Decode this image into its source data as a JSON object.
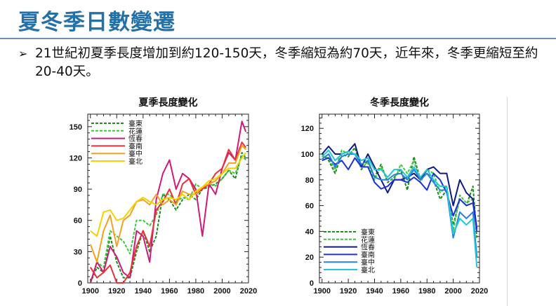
{
  "slide": {
    "title": "夏冬季日數變遷",
    "bullet_marker": "➢",
    "bullet_text": "21世紀初夏季長度增加到約120-150天，冬季縮短為約70天，近年來，冬季更縮短至約20-40天。"
  },
  "chart_data": [
    {
      "type": "line",
      "title": "夏季長度變化",
      "xlabel": "",
      "ylabel": "",
      "xlim": [
        1898,
        2020
      ],
      "ylim": [
        0,
        162
      ],
      "xticks": [
        1900,
        1920,
        1940,
        1960,
        1980,
        2000,
        2020
      ],
      "yticks": [
        0,
        30,
        60,
        90,
        120,
        150
      ],
      "legend_position": "top-left",
      "grid": false,
      "x": [
        1900,
        1905,
        1910,
        1915,
        1920,
        1925,
        1930,
        1935,
        1940,
        1945,
        1950,
        1955,
        1960,
        1965,
        1970,
        1975,
        1980,
        1985,
        1990,
        1995,
        2000,
        2005,
        2010,
        2015,
        2018
      ],
      "series": [
        {
          "name": "臺東",
          "color": "#1e8c1e",
          "dashed": true,
          "values": [
            0,
            15,
            10,
            45,
            20,
            5,
            5,
            30,
            50,
            30,
            45,
            85,
            80,
            70,
            80,
            85,
            80,
            90,
            92,
            95,
            100,
            108,
            100,
            125,
            120
          ]
        },
        {
          "name": "花蓮",
          "color": "#3cc83c",
          "dashed": true,
          "values": [
            0,
            20,
            15,
            50,
            45,
            40,
            28,
            60,
            60,
            55,
            65,
            85,
            85,
            78,
            82,
            80,
            95,
            90,
            95,
            93,
            100,
            108,
            105,
            122,
            118
          ]
        },
        {
          "name": "恆春",
          "color": "#d0197a",
          "dashed": false,
          "values": [
            0,
            20,
            10,
            35,
            25,
            10,
            5,
            50,
            45,
            20,
            80,
            105,
            118,
            90,
            105,
            100,
            90,
            45,
            95,
            85,
            110,
            125,
            118,
            155,
            145
          ]
        },
        {
          "name": "臺南",
          "color": "#e8303a",
          "dashed": false,
          "values": [
            15,
            5,
            10,
            17,
            0,
            0,
            10,
            35,
            50,
            35,
            70,
            78,
            90,
            75,
            95,
            100,
            85,
            90,
            95,
            105,
            110,
            128,
            118,
            135,
            130
          ]
        },
        {
          "name": "臺中",
          "color": "#f5a020",
          "dashed": false,
          "values": [
            37,
            20,
            50,
            65,
            35,
            60,
            65,
            78,
            80,
            75,
            85,
            75,
            80,
            75,
            88,
            85,
            85,
            92,
            95,
            98,
            105,
            115,
            115,
            132,
            128
          ]
        },
        {
          "name": "臺北",
          "color": "#f8d000",
          "dashed": false,
          "values": [
            50,
            45,
            68,
            70,
            60,
            62,
            70,
            78,
            82,
            78,
            75,
            80,
            82,
            80,
            85,
            80,
            88,
            92,
            98,
            100,
            105,
            110,
            110,
            120,
            125
          ]
        }
      ]
    },
    {
      "type": "line",
      "title": "冬季長度變化",
      "xlabel": "",
      "ylabel": "",
      "xlim": [
        1898,
        2020
      ],
      "ylim": [
        0,
        131
      ],
      "xticks": [
        1900,
        1920,
        1940,
        1960,
        1980,
        2000,
        2020
      ],
      "yticks": [
        0,
        20,
        40,
        60,
        80,
        100,
        120
      ],
      "legend_position": "bottom-left",
      "grid": false,
      "x": [
        1900,
        1905,
        1910,
        1915,
        1920,
        1925,
        1930,
        1935,
        1940,
        1945,
        1950,
        1955,
        1960,
        1965,
        1970,
        1975,
        1980,
        1985,
        1990,
        1995,
        2000,
        2005,
        2010,
        2015,
        2018
      ],
      "series": [
        {
          "name": "臺東",
          "color": "#1e8c1e",
          "dashed": true,
          "values": [
            100,
            95,
            85,
            100,
            98,
            105,
            88,
            95,
            82,
            92,
            78,
            82,
            88,
            72,
            98,
            80,
            85,
            80,
            65,
            72,
            45,
            65,
            60,
            75,
            35
          ]
        },
        {
          "name": "花蓮",
          "color": "#3cc83c",
          "dashed": true,
          "values": [
            98,
            97,
            88,
            103,
            100,
            100,
            90,
            93,
            80,
            90,
            80,
            80,
            92,
            85,
            95,
            78,
            88,
            85,
            70,
            75,
            40,
            68,
            62,
            65,
            40
          ]
        },
        {
          "name": "恆春",
          "color": "#101a80",
          "dashed": false,
          "values": [
            100,
            106,
            100,
            100,
            102,
            108,
            90,
            100,
            90,
            80,
            70,
            80,
            80,
            82,
            85,
            80,
            88,
            90,
            85,
            85,
            60,
            80,
            70,
            65,
            42
          ]
        },
        {
          "name": "臺南",
          "color": "#1f30d8",
          "dashed": false,
          "values": [
            95,
            97,
            92,
            95,
            88,
            97,
            90,
            90,
            78,
            73,
            75,
            80,
            80,
            78,
            82,
            78,
            72,
            85,
            80,
            70,
            52,
            65,
            60,
            62,
            40
          ]
        },
        {
          "name": "臺中",
          "color": "#2a80e0",
          "dashed": false,
          "values": [
            96,
            100,
            90,
            98,
            100,
            100,
            92,
            95,
            82,
            80,
            80,
            84,
            85,
            80,
            88,
            80,
            85,
            78,
            72,
            72,
            35,
            55,
            50,
            55,
            20
          ]
        },
        {
          "name": "臺北",
          "color": "#20c8d8",
          "dashed": false,
          "values": [
            98,
            103,
            95,
            100,
            102,
            100,
            95,
            97,
            88,
            88,
            82,
            88,
            88,
            82,
            90,
            82,
            88,
            80,
            75,
            75,
            38,
            50,
            45,
            50,
            12
          ]
        }
      ]
    }
  ]
}
